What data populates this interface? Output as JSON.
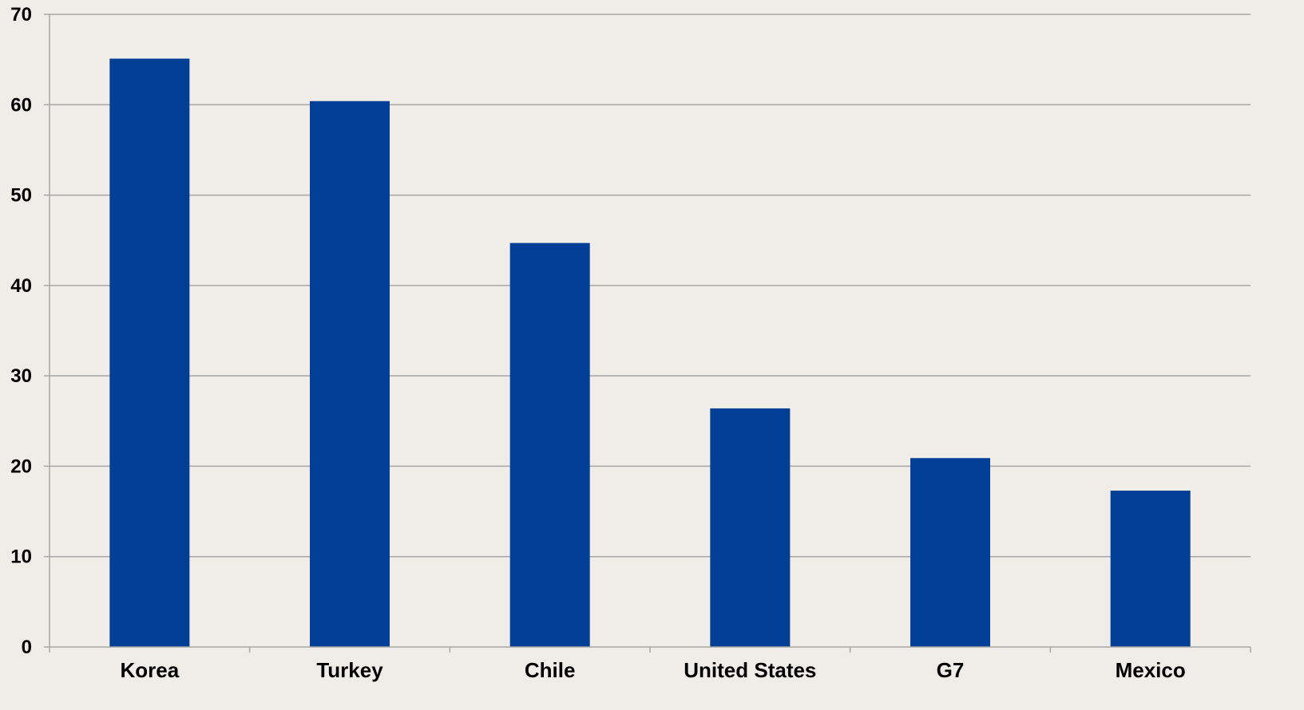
{
  "chart_data": {
    "type": "bar",
    "title": "",
    "xlabel": "",
    "ylabel": "",
    "categories": [
      "Korea",
      "Turkey",
      "Chile",
      "United States",
      "G7",
      "Mexico"
    ],
    "values": [
      65.1,
      60.4,
      44.7,
      26.4,
      20.9,
      17.3
    ],
    "ylim": [
      0,
      70
    ],
    "yticks": [
      0,
      10,
      20,
      30,
      40,
      50,
      60,
      70
    ],
    "grid": true,
    "legend": "none",
    "bar_color": "#003f95",
    "background_color": "#f0ede8",
    "grid_color": "#a6a6a6"
  }
}
